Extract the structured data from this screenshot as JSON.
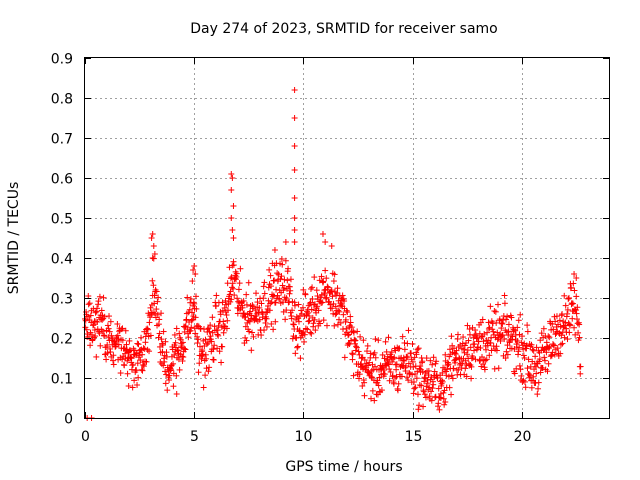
{
  "chart_data": {
    "type": "scatter",
    "title": "Day 274 of 2023, SRMTID for receiver samo",
    "xlabel": "GPS time / hours",
    "ylabel": "SRMTID / TECUs",
    "xlim": [
      0,
      24
    ],
    "ylim": [
      0,
      0.9
    ],
    "xticks": [
      0,
      5,
      10,
      15,
      20
    ],
    "yticks": [
      0,
      0.1,
      0.2,
      0.3,
      0.4,
      0.5,
      0.6,
      0.7,
      0.8,
      0.9
    ],
    "grid": true,
    "marker": "+",
    "color": "#ff0000",
    "profile": [
      [
        0.0,
        0.22
      ],
      [
        0.2,
        0.23
      ],
      [
        0.5,
        0.22
      ],
      [
        0.8,
        0.24
      ],
      [
        1.0,
        0.2
      ],
      [
        1.3,
        0.19
      ],
      [
        1.6,
        0.17
      ],
      [
        1.9,
        0.16
      ],
      [
        2.2,
        0.14
      ],
      [
        2.5,
        0.16
      ],
      [
        2.8,
        0.18
      ],
      [
        3.0,
        0.28
      ],
      [
        3.2,
        0.33
      ],
      [
        3.4,
        0.22
      ],
      [
        3.6,
        0.15
      ],
      [
        3.9,
        0.13
      ],
      [
        4.2,
        0.16
      ],
      [
        4.5,
        0.2
      ],
      [
        4.8,
        0.25
      ],
      [
        5.0,
        0.28
      ],
      [
        5.2,
        0.18
      ],
      [
        5.5,
        0.16
      ],
      [
        5.8,
        0.19
      ],
      [
        6.0,
        0.23
      ],
      [
        6.3,
        0.22
      ],
      [
        6.6,
        0.3
      ],
      [
        6.8,
        0.36
      ],
      [
        7.0,
        0.3
      ],
      [
        7.3,
        0.26
      ],
      [
        7.6,
        0.25
      ],
      [
        8.0,
        0.27
      ],
      [
        8.3,
        0.29
      ],
      [
        8.6,
        0.31
      ],
      [
        9.0,
        0.33
      ],
      [
        9.3,
        0.32
      ],
      [
        9.6,
        0.24
      ],
      [
        9.9,
        0.22
      ],
      [
        10.2,
        0.26
      ],
      [
        10.5,
        0.28
      ],
      [
        10.8,
        0.31
      ],
      [
        11.1,
        0.32
      ],
      [
        11.4,
        0.3
      ],
      [
        11.7,
        0.28
      ],
      [
        12.0,
        0.22
      ],
      [
        12.3,
        0.18
      ],
      [
        12.6,
        0.14
      ],
      [
        13.0,
        0.12
      ],
      [
        13.3,
        0.11
      ],
      [
        13.6,
        0.12
      ],
      [
        14.0,
        0.13
      ],
      [
        14.3,
        0.13
      ],
      [
        14.7,
        0.15
      ],
      [
        15.0,
        0.13
      ],
      [
        15.4,
        0.1
      ],
      [
        15.8,
        0.09
      ],
      [
        16.2,
        0.08
      ],
      [
        16.5,
        0.1
      ],
      [
        16.8,
        0.14
      ],
      [
        17.2,
        0.16
      ],
      [
        17.6,
        0.18
      ],
      [
        18.0,
        0.18
      ],
      [
        18.4,
        0.19
      ],
      [
        18.8,
        0.2
      ],
      [
        19.2,
        0.21
      ],
      [
        19.6,
        0.2
      ],
      [
        20.0,
        0.17
      ],
      [
        20.4,
        0.14
      ],
      [
        20.8,
        0.13
      ],
      [
        21.2,
        0.17
      ],
      [
        21.6,
        0.22
      ],
      [
        22.0,
        0.23
      ],
      [
        22.3,
        0.28
      ],
      [
        22.5,
        0.26
      ],
      [
        22.7,
        0.16
      ]
    ],
    "spikes": [
      [
        9.6,
        0.82
      ],
      [
        9.6,
        0.75
      ],
      [
        9.6,
        0.68
      ],
      [
        9.6,
        0.62
      ],
      [
        9.6,
        0.55
      ],
      [
        9.6,
        0.5
      ],
      [
        9.6,
        0.47
      ],
      [
        9.6,
        0.44
      ],
      [
        6.7,
        0.61
      ],
      [
        6.75,
        0.6
      ],
      [
        6.7,
        0.57
      ],
      [
        6.8,
        0.53
      ],
      [
        6.7,
        0.5
      ],
      [
        6.75,
        0.47
      ],
      [
        6.8,
        0.45
      ],
      [
        3.1,
        0.46
      ],
      [
        3.05,
        0.45
      ],
      [
        3.15,
        0.43
      ],
      [
        3.2,
        0.41
      ],
      [
        3.1,
        0.4
      ],
      [
        5.0,
        0.38
      ],
      [
        4.95,
        0.37
      ],
      [
        5.05,
        0.36
      ],
      [
        8.7,
        0.42
      ],
      [
        9.2,
        0.44
      ],
      [
        10.9,
        0.46
      ],
      [
        11.0,
        0.44
      ],
      [
        11.3,
        0.43
      ],
      [
        22.4,
        0.36
      ],
      [
        22.5,
        0.35
      ],
      [
        0.1,
        0.0
      ],
      [
        0.3,
        0.0
      ],
      [
        2.0,
        0.08
      ],
      [
        4.2,
        0.06
      ],
      [
        12.7,
        0.08
      ],
      [
        16.3,
        0.05
      ],
      [
        16.5,
        0.04
      ]
    ],
    "noise_amplitude": 0.035,
    "points_per_hour": 60
  }
}
